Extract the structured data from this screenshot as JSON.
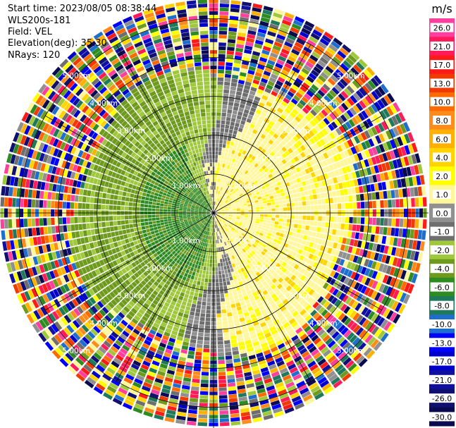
{
  "header": {
    "start_time": "Start time: 2023/08/05 08:38:44",
    "instrument": "WLS200s-181",
    "field": "Field: VEL",
    "elevation": "Elevation(deg): 35.30",
    "nrays": "NRays: 120"
  },
  "chart_data": {
    "type": "heatmap",
    "projection": "polar",
    "field": "VEL",
    "nrays": 120,
    "max_range_km": 5.5,
    "range_ring_labels": [
      "1.00km",
      "2.00km",
      "3.00km",
      "4.00km",
      "5.00km"
    ],
    "colorbar": {
      "unit": "m/s",
      "tick_labels": [
        "26.0",
        "21.0",
        "17.0",
        "13.0",
        "10.0",
        "8.0",
        "6.0",
        "4.0",
        "2.0",
        "1.0",
        "0.0",
        "-1.0",
        "-2.0",
        "-4.0",
        "-6.0",
        "-8.0",
        "-10.0",
        "-13.0",
        "-17.0",
        "-21.0",
        "-26.0",
        "-30.0"
      ],
      "colors": [
        "#ff3fa0",
        "#ff1a5a",
        "#ff1a1a",
        "#f03a00",
        "#ff6a00",
        "#ff8c1a",
        "#ffb000",
        "#ffd400",
        "#ffff00",
        "#fff79a",
        "#909090",
        "#6e6e6e",
        "#a0c83c",
        "#6e9a1e",
        "#2e8b22",
        "#1e7a5a",
        "#1e6ed0",
        "#0000ff",
        "#0000cc",
        "#1010a0",
        "#101070",
        "#0a0a50"
      ]
    }
  }
}
